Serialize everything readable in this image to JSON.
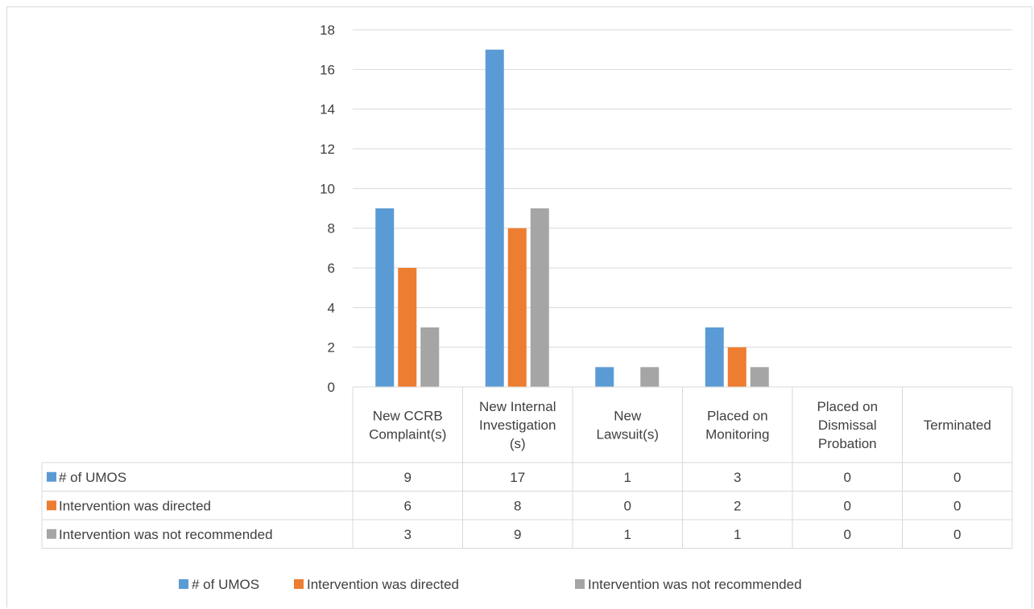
{
  "chart_data": {
    "type": "bar",
    "title": "",
    "xlabel": "",
    "ylabel": "",
    "ylim": [
      0,
      18
    ],
    "yticks": [
      0,
      2,
      4,
      6,
      8,
      10,
      12,
      14,
      16,
      18
    ],
    "grid": true,
    "legend": "bottom",
    "data_table": true,
    "categories": [
      [
        "New CCRB",
        "Complaint(s)"
      ],
      [
        "New Internal",
        "Investigation",
        "(s)"
      ],
      [
        "New",
        "Lawsuit(s)"
      ],
      [
        "Placed on",
        "Monitoring"
      ],
      [
        "Placed on",
        "Dismissal",
        "Probation"
      ],
      [
        "Terminated"
      ]
    ],
    "series": [
      {
        "name": "# of UMOS",
        "color": "#5b9bd5",
        "values": [
          9,
          17,
          1,
          3,
          0,
          0
        ]
      },
      {
        "name": "Intervention was directed",
        "color": "#ed7d31",
        "values": [
          6,
          8,
          0,
          2,
          0,
          0
        ]
      },
      {
        "name": "Intervention was not recommended",
        "color": "#a5a5a5",
        "values": [
          3,
          9,
          1,
          1,
          0,
          0
        ]
      }
    ]
  }
}
